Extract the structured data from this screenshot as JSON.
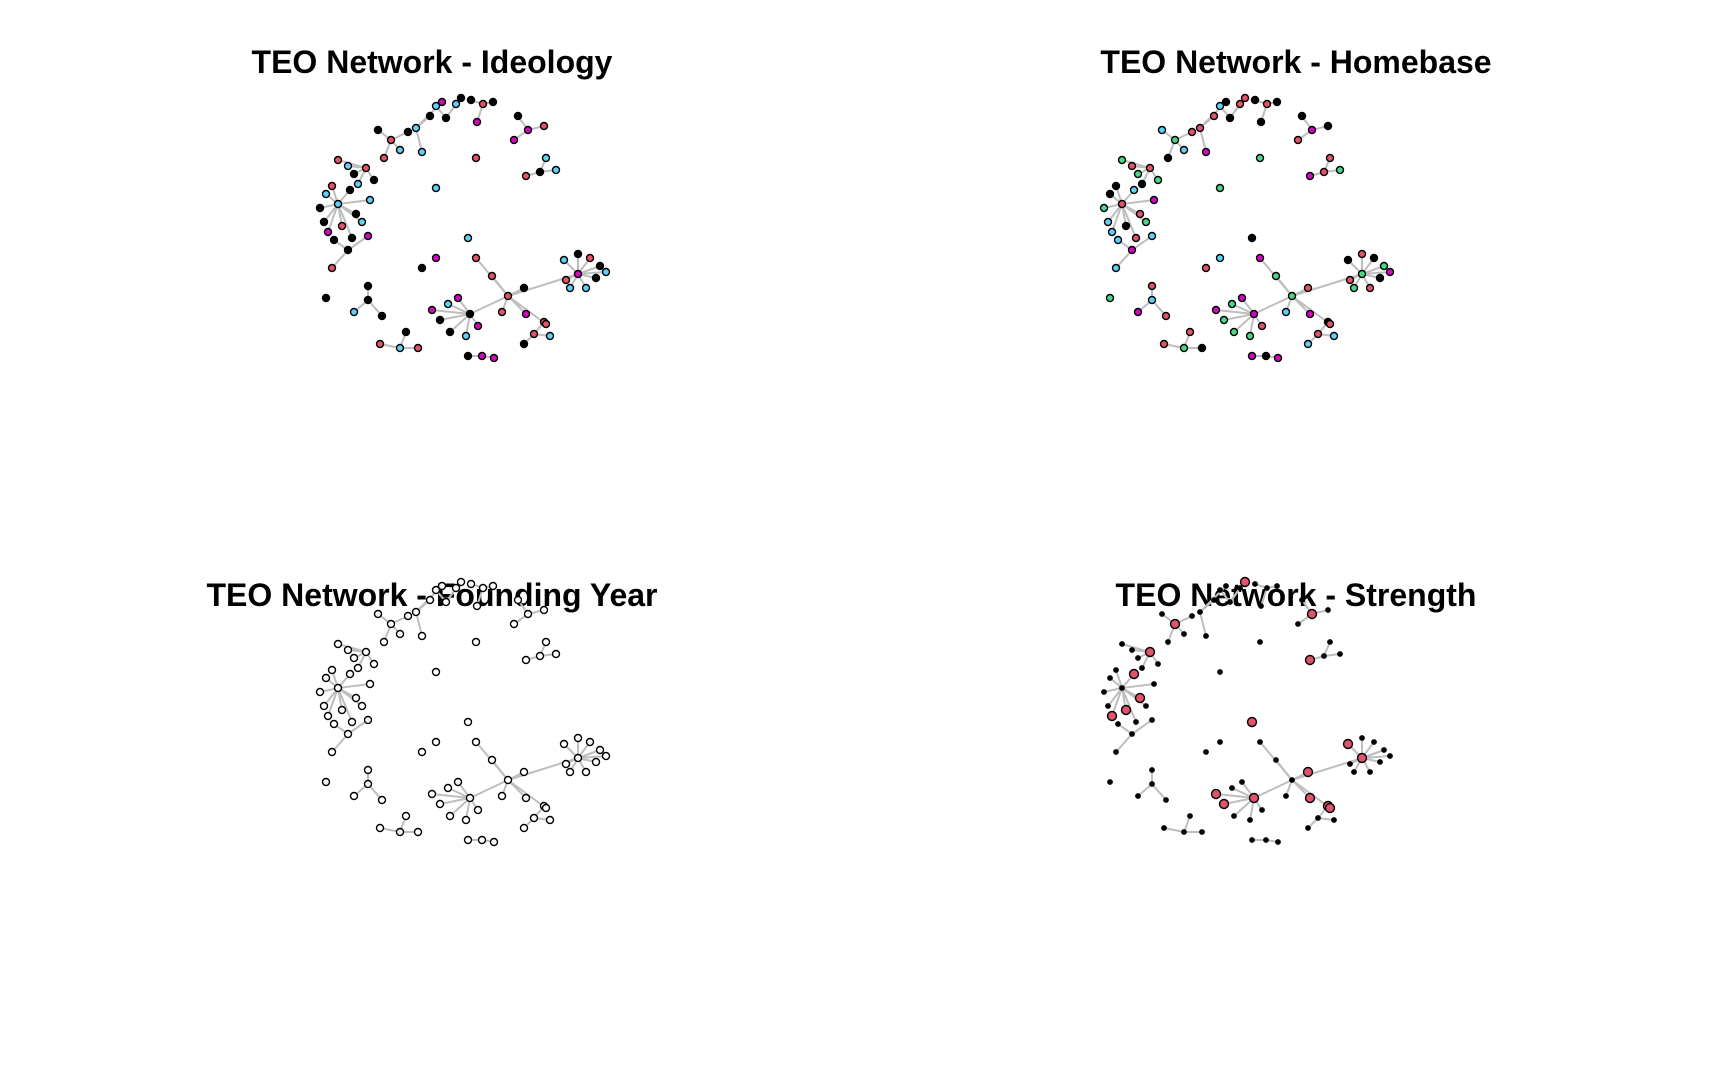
{
  "chart_data": [
    {
      "type": "network",
      "title": "TEO Network - Ideology",
      "node_style": "ideology"
    },
    {
      "type": "network",
      "title": "TEO Network - Homebase",
      "node_style": "homebase"
    },
    {
      "type": "network",
      "title": "TEO Network - Founding Year",
      "node_style": "founding"
    },
    {
      "type": "network",
      "title": "TEO Network - Strength",
      "node_style": "strength"
    }
  ],
  "colors": {
    "edge": "#bebebe",
    "node_stroke": "#000000",
    "black": "#000000",
    "white": "#ffffff",
    "pink": "#df536b",
    "blue": "#61d0f4",
    "purple": "#cd0bbc",
    "green": "#4ed486"
  }
}
